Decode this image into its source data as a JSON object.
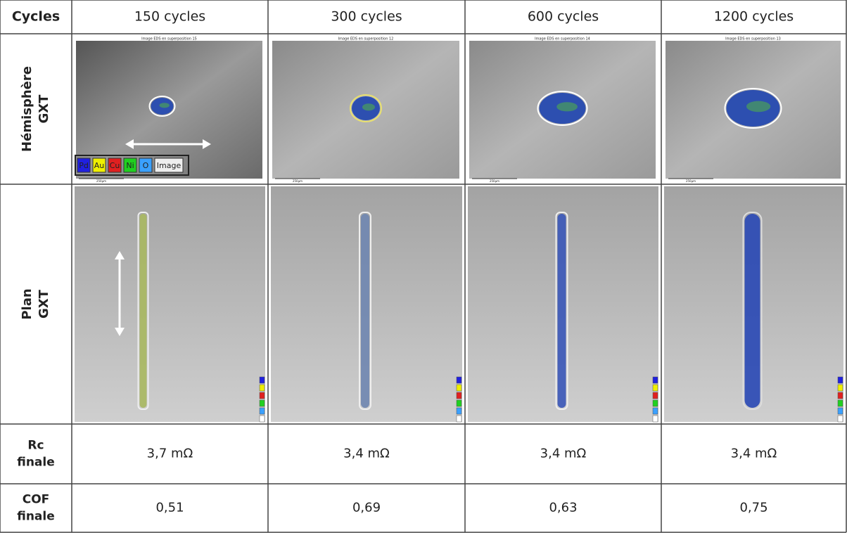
{
  "header": {
    "label": "Cycles",
    "columns": [
      "150 cycles",
      "300 cycles",
      "600 cycles",
      "1200 cycles"
    ]
  },
  "hemisphere": {
    "label": [
      "Hémisphère",
      "GXT"
    ],
    "titles": [
      "Image EDS en superposition 15",
      "Image EDS en superposition 12",
      "Image EDS en superposition 14",
      "Image EDS en superposition 13"
    ],
    "legend": [
      "Pd",
      "Au",
      "Cu",
      "Ni",
      "O",
      "Image"
    ],
    "scale": "250µm"
  },
  "plan": {
    "label": [
      "Plan",
      "GXT"
    ]
  },
  "rc": {
    "label": [
      "Rc",
      "finale"
    ],
    "values": [
      "3,7 mΩ",
      "3,4 mΩ",
      "3,4 mΩ",
      "3,4 mΩ"
    ]
  },
  "cof": {
    "label": [
      "COF",
      "finale"
    ],
    "values": [
      "0,51",
      "0,69",
      "0,63",
      "0,75"
    ]
  }
}
